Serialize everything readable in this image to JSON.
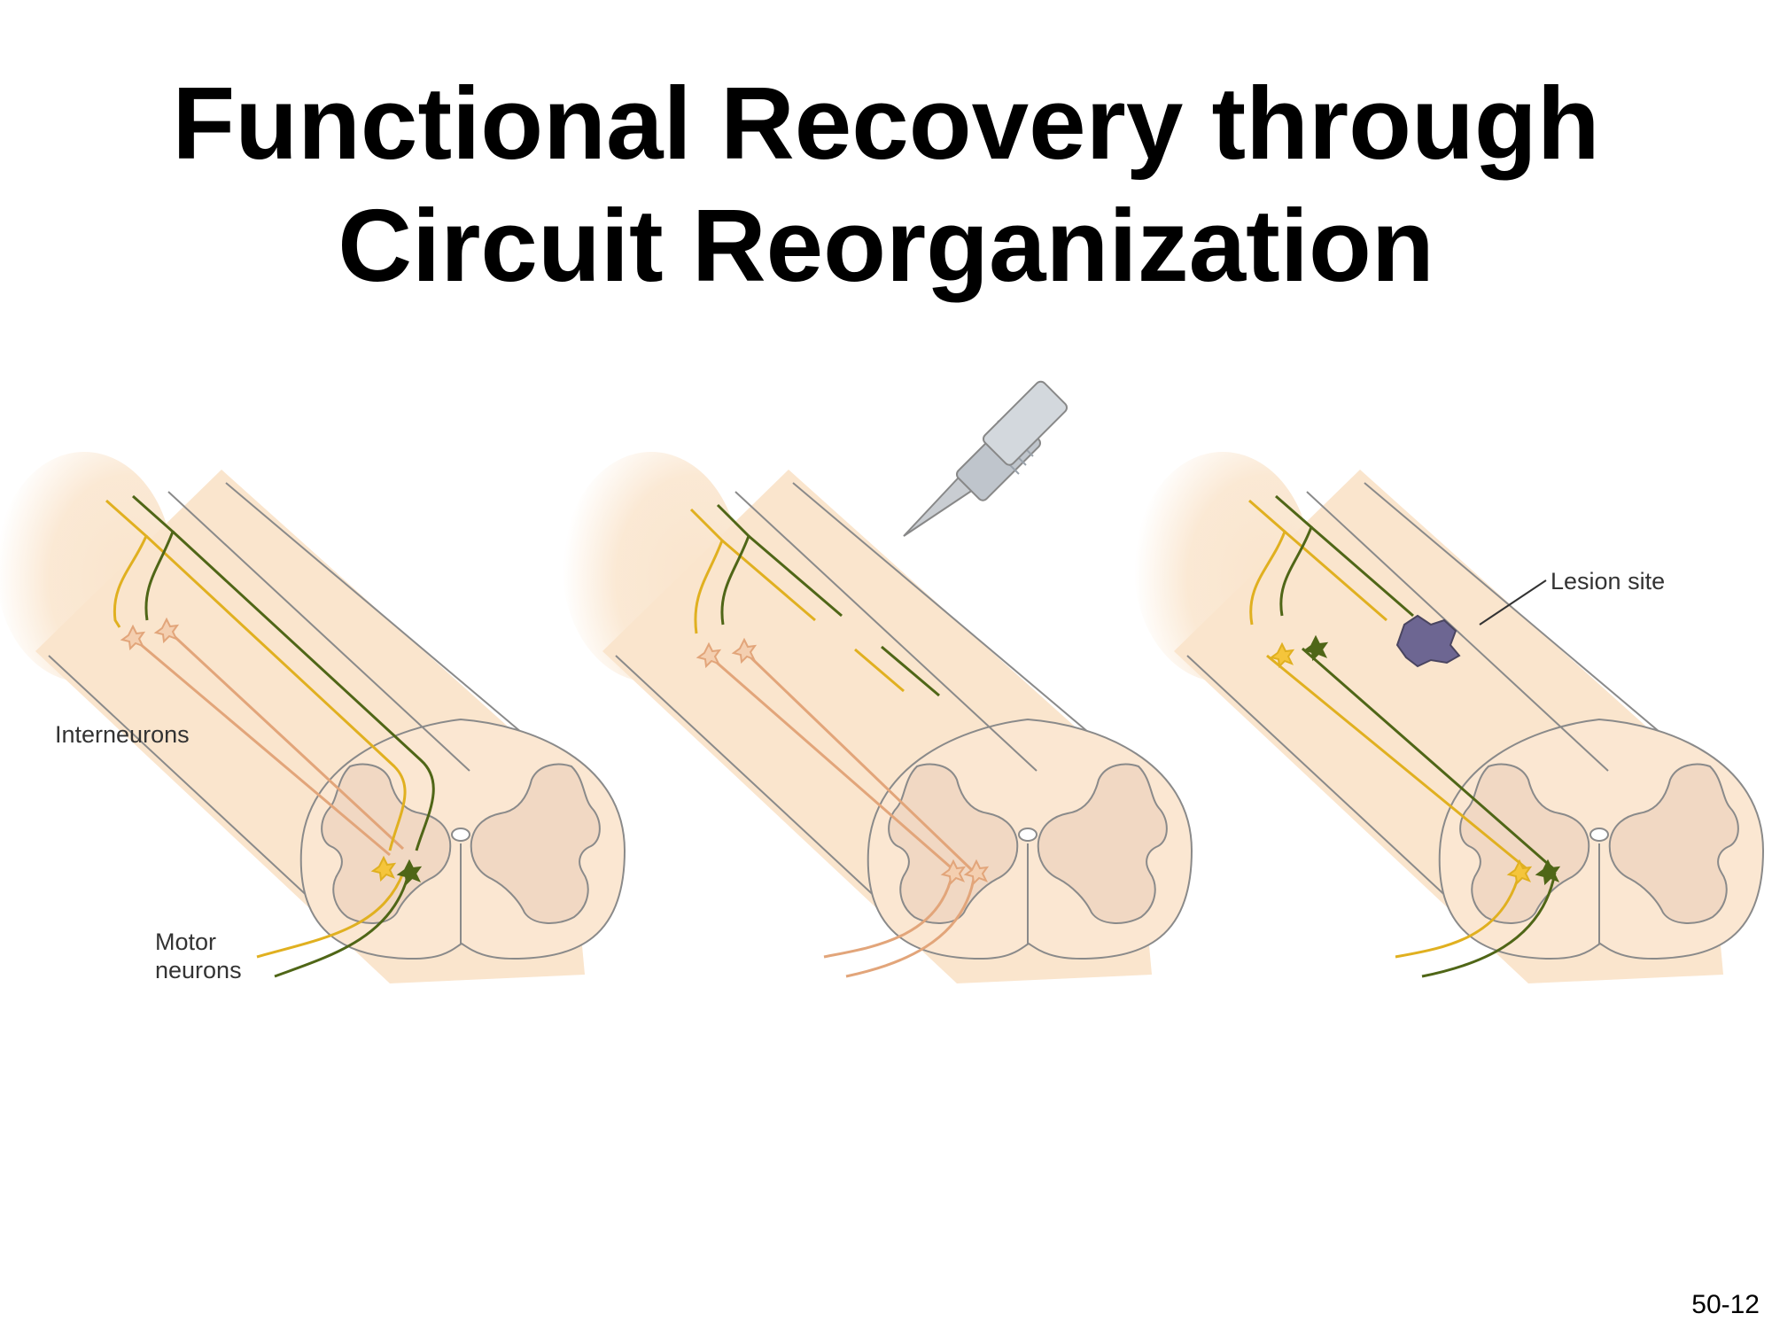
{
  "title": {
    "line1": "Functional Recovery through",
    "line2": "Circuit Reorganization"
  },
  "labels": {
    "interneurons": "Interneurons",
    "motor_line1": "Motor",
    "motor_line2": "neurons",
    "lesion": "Lesion site"
  },
  "slide_number": "50-12",
  "colors": {
    "cord_fill": "#fae5cd",
    "gray_matter": "#f1d8c3",
    "outline": "#8a8a8a",
    "yellow_axon": "#e0b020",
    "green_axon": "#4f6617",
    "pink_axon": "#e2a57a",
    "lesion": "#6d6692"
  },
  "icons": [
    "scalpel-icon",
    "lesion-icon",
    "neuron-star-icon"
  ]
}
